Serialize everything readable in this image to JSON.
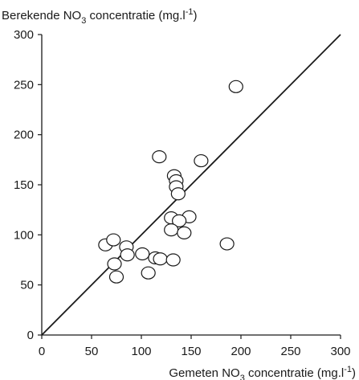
{
  "chart_data": {
    "type": "scatter",
    "title": "",
    "ylabel": {
      "pre": "Berekende NO",
      "sub": "3",
      "mid": " concentratie (mg.l",
      "sup": "-1",
      "post": ")"
    },
    "xlabel": {
      "pre": "Gemeten NO",
      "sub": "3",
      "mid": " concentratie (mg.l",
      "sup": "-1",
      "post": ")"
    },
    "xlim": [
      0,
      300
    ],
    "ylim": [
      0,
      300
    ],
    "xticks": [
      0,
      50,
      100,
      150,
      200,
      250,
      300
    ],
    "yticks": [
      0,
      50,
      100,
      150,
      200,
      250,
      300
    ],
    "reference_line": {
      "type": "identity",
      "from": [
        0,
        0
      ],
      "to": [
        300,
        300
      ]
    },
    "grid": false,
    "marker": "open-circle",
    "points": [
      {
        "x": 195,
        "y": 248
      },
      {
        "x": 118,
        "y": 178
      },
      {
        "x": 160,
        "y": 174
      },
      {
        "x": 133,
        "y": 159
      },
      {
        "x": 135,
        "y": 154
      },
      {
        "x": 135,
        "y": 148
      },
      {
        "x": 137,
        "y": 141
      },
      {
        "x": 148,
        "y": 118
      },
      {
        "x": 130,
        "y": 117
      },
      {
        "x": 138,
        "y": 114
      },
      {
        "x": 130,
        "y": 105
      },
      {
        "x": 143,
        "y": 102
      },
      {
        "x": 186,
        "y": 91
      },
      {
        "x": 64,
        "y": 90
      },
      {
        "x": 72,
        "y": 95
      },
      {
        "x": 85,
        "y": 88
      },
      {
        "x": 86,
        "y": 80
      },
      {
        "x": 101,
        "y": 81
      },
      {
        "x": 114,
        "y": 77
      },
      {
        "x": 119,
        "y": 76
      },
      {
        "x": 132,
        "y": 75
      },
      {
        "x": 73,
        "y": 71
      },
      {
        "x": 107,
        "y": 62
      },
      {
        "x": 75,
        "y": 58
      }
    ]
  }
}
